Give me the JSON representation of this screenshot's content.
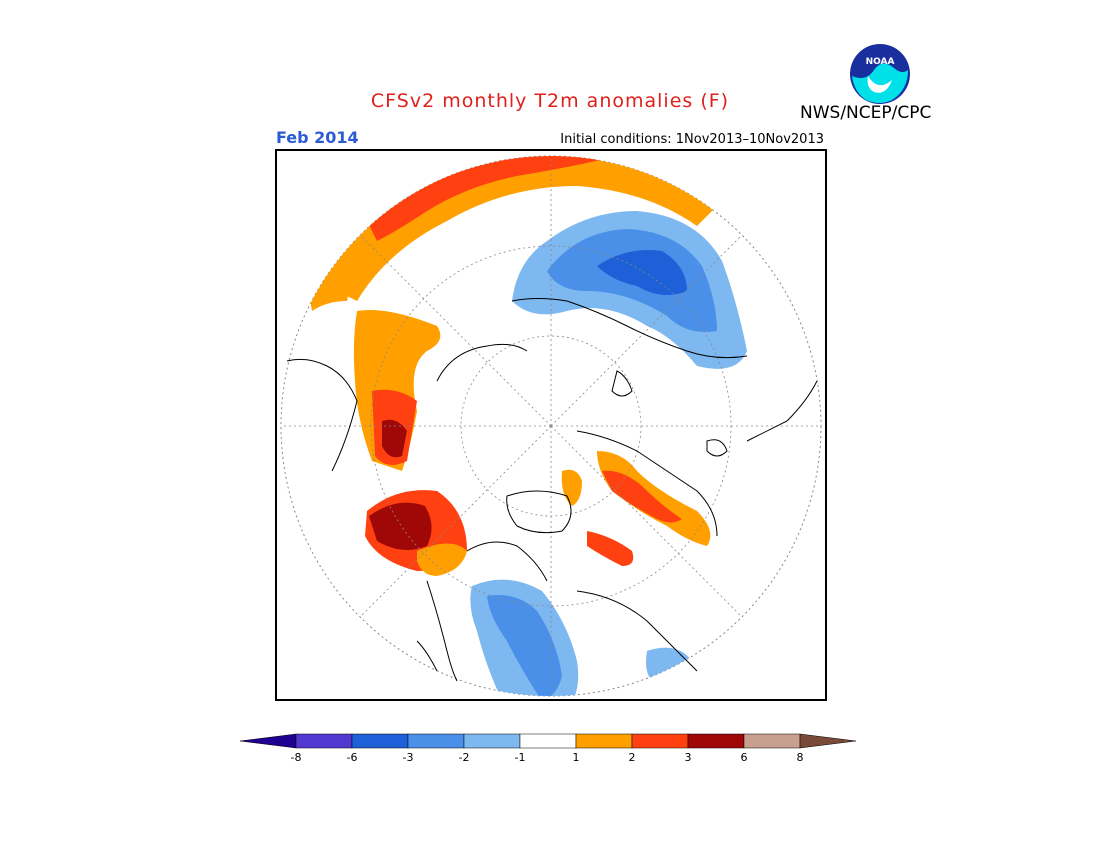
{
  "header": {
    "title": "CFSv2 monthly T2m anomalies (F)",
    "month": "Feb 2014",
    "initial_conditions": "Initial conditions: 1Nov2013–10Nov2013",
    "agency": "NWS/NCEP/CPC",
    "logo_text": "NOAA"
  },
  "map": {
    "projection": "north-polar-stereographic",
    "variable": "2m temperature anomaly",
    "units": "F"
  },
  "legend": {
    "ticks": [
      "-8",
      "-6",
      "-3",
      "-2",
      "-1",
      "1",
      "2",
      "3",
      "6",
      "8"
    ],
    "colors": {
      "below_-8": "#200090",
      "-8_-6": "#5038d0",
      "-6_-3": "#1d60d8",
      "-3_-2": "#4a90e8",
      "-2_-1": "#7eb8f0",
      "-1_1": "#ffffff",
      "1_2": "#ffa000",
      "2_3": "#ff4010",
      "3_6": "#a00808",
      "6_8": "#c8a090",
      "above_8": "#7a4a38"
    }
  }
}
